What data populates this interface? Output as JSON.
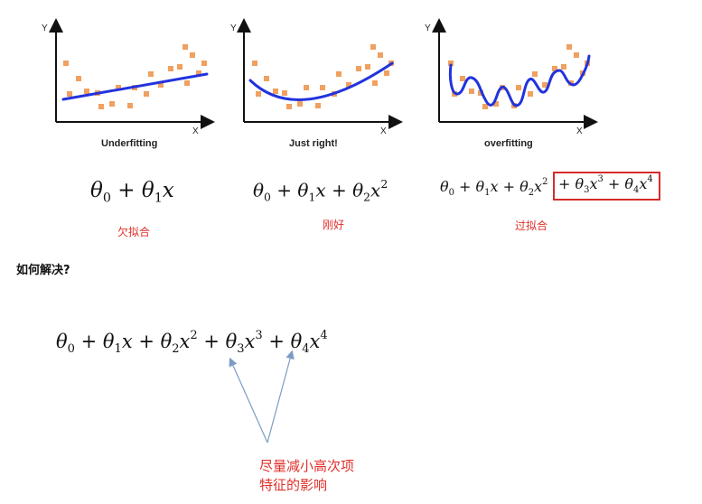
{
  "panels": [
    {
      "id": "under",
      "title": "Underfitting",
      "ylabel": "Y",
      "xlabel": "X",
      "formula_label": "欠拟合"
    },
    {
      "id": "right",
      "title": "Just right!",
      "ylabel": "Y",
      "xlabel": "X",
      "formula_label": "刚好"
    },
    {
      "id": "over",
      "title": "overfitting",
      "ylabel": "Y",
      "xlabel": "X",
      "formula_label": "过拟合"
    }
  ],
  "question": "如何解决?",
  "annotation": {
    "line1": "尽量减小高次项",
    "line2": "特征的影响"
  },
  "colors": {
    "points": "#f0a060",
    "fit_line": "#2233dd",
    "highlight_box": "#d62b2b",
    "annotation_text": "#e0302a",
    "arrows": "#7a9cc6"
  }
}
